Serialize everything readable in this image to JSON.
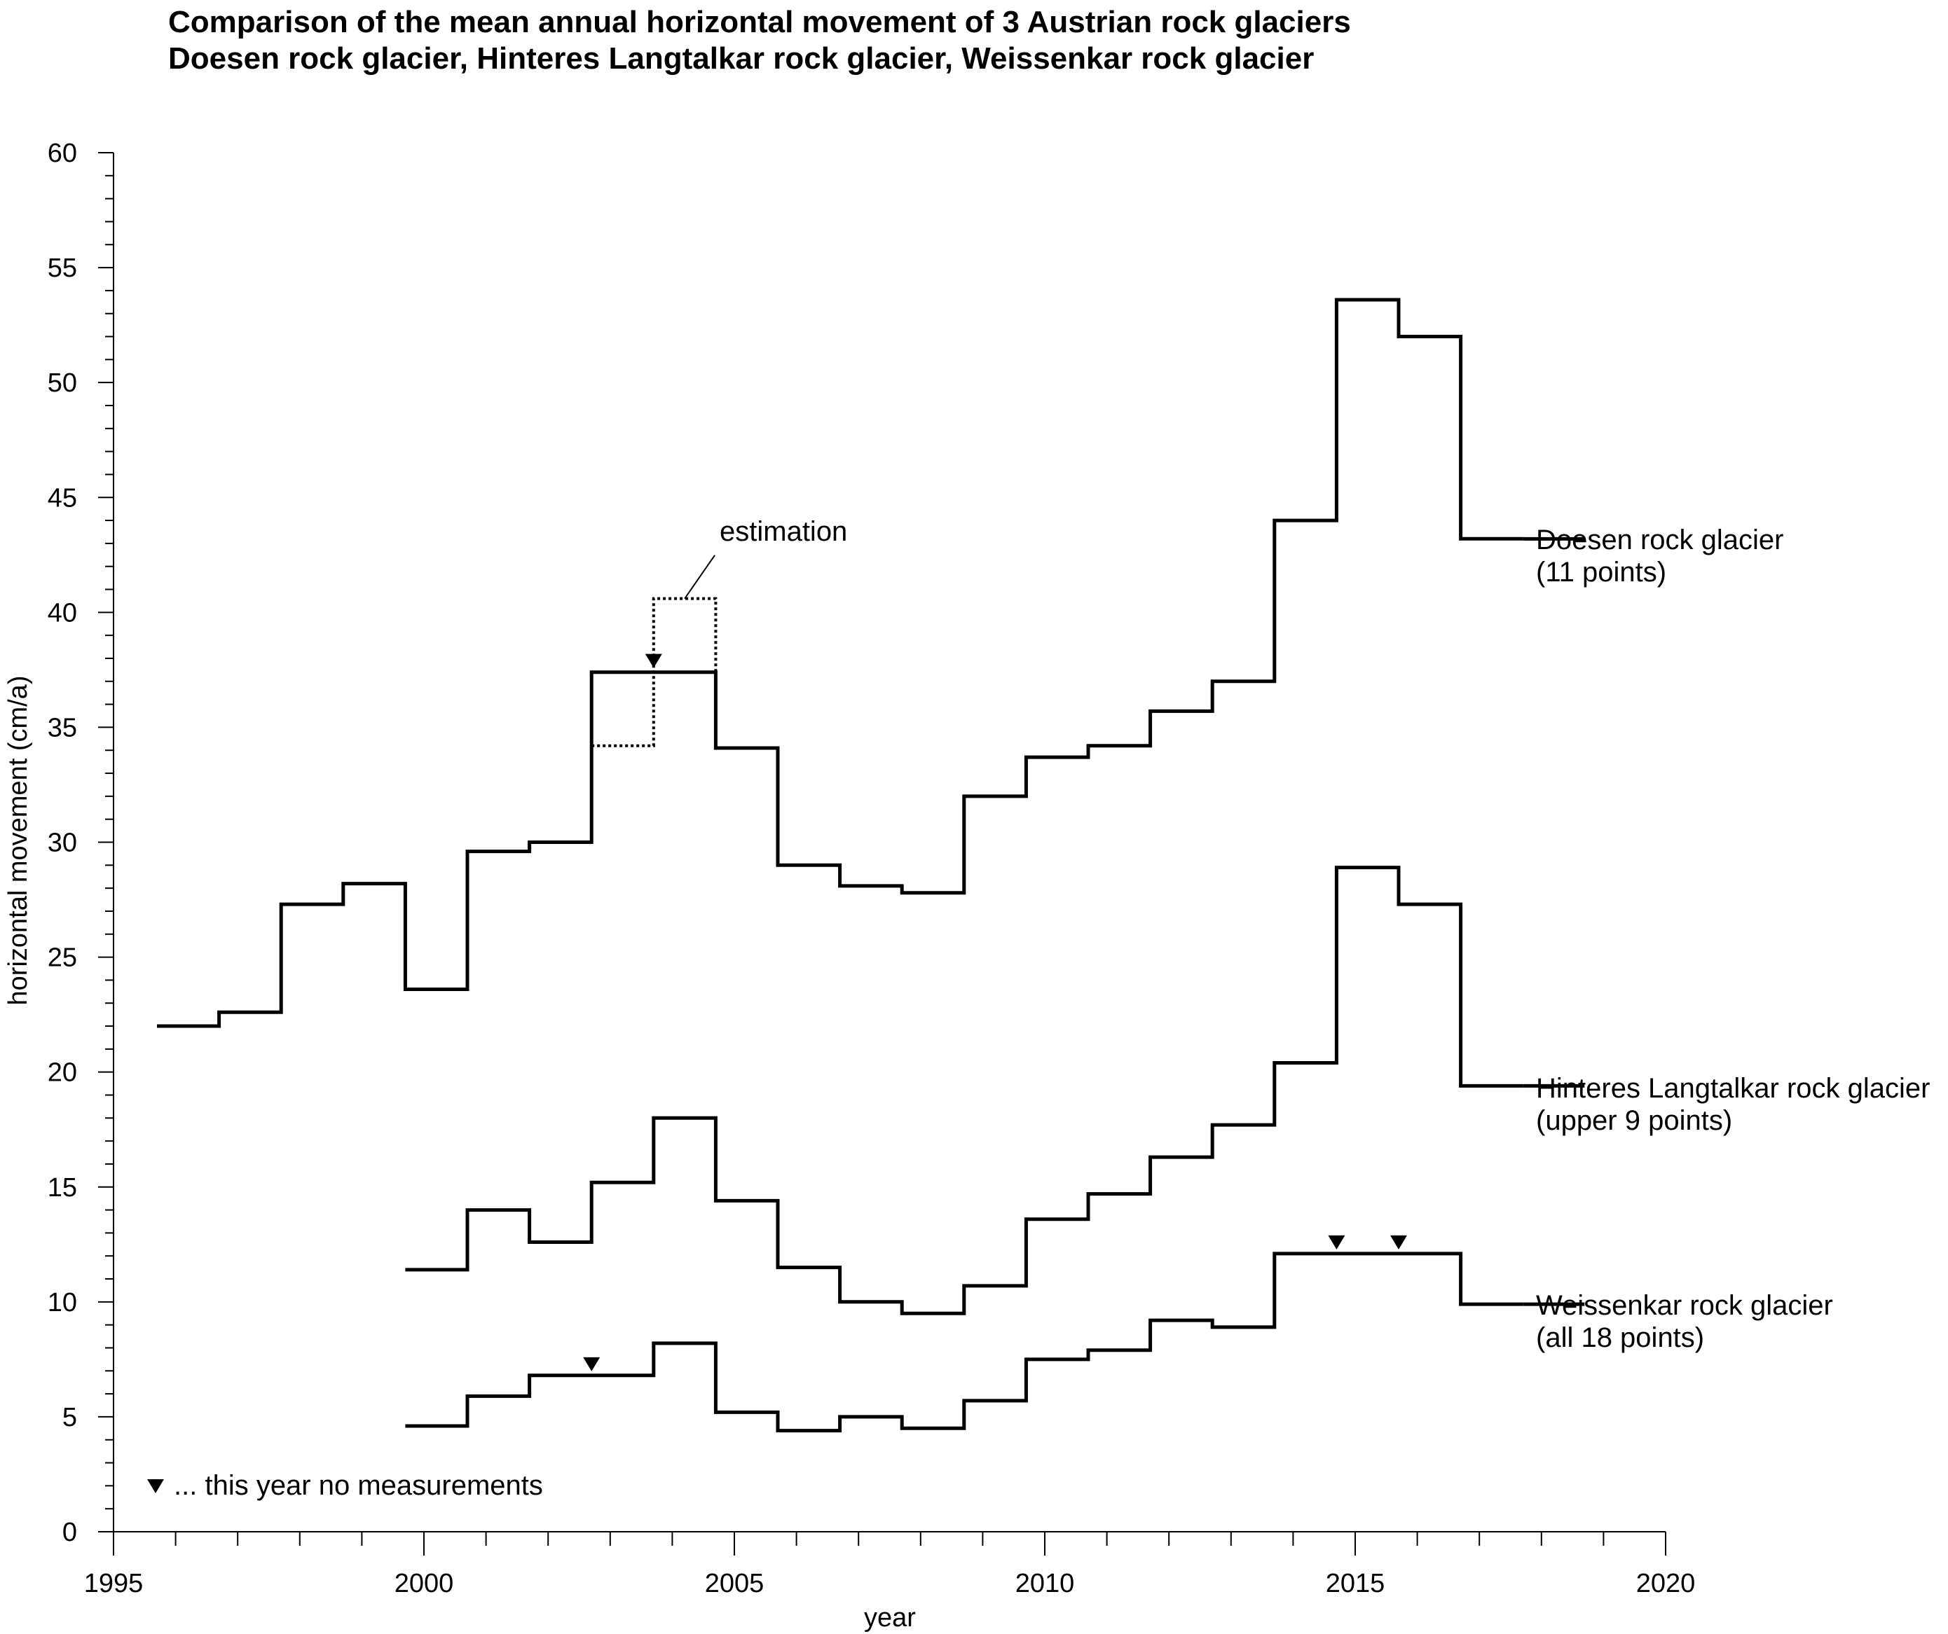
{
  "chart_data": {
    "type": "line",
    "step": true,
    "title": "Comparison of the mean annual horizontal movement of 3 Austrian rock glaciers",
    "subtitle": "Doesen rock glacier, Hinteres Langtalkar rock glacier, Weissenkar rock glacier",
    "xlabel": "year",
    "ylabel": "horizontal movement (cm/a)",
    "xlim": [
      1995,
      2020
    ],
    "ylim": [
      0,
      60
    ],
    "x_ticks": [
      "1995",
      "2000",
      "2005",
      "2010",
      "2015",
      "2020"
    ],
    "y_ticks": [
      "0",
      "5",
      "10",
      "15",
      "20",
      "25",
      "30",
      "35",
      "40",
      "45",
      "50",
      "55",
      "60"
    ],
    "grid": false,
    "series": [
      {
        "label_line1": "Doesen rock glacier",
        "label_line2": "(11 points)",
        "x_start": [
          1995.7,
          1996.7,
          1997.7,
          1998.7,
          1999.7,
          2000.7,
          2001.7,
          2002.7,
          2003.7,
          2004.7,
          2005.7,
          2006.7,
          2007.7,
          2008.7,
          2009.7,
          2010.7,
          2011.7,
          2012.7,
          2013.7,
          2014.7,
          2015.7,
          2016.7
        ],
        "values": [
          22.0,
          22.6,
          27.3,
          28.2,
          23.6,
          29.6,
          30.0,
          37.4,
          37.4,
          34.1,
          29.0,
          28.1,
          27.8,
          32.0,
          33.7,
          34.2,
          35.7,
          37.0,
          44.0,
          53.6,
          52.0,
          43.2
        ],
        "x_end": 2017.7
      },
      {
        "label_line1": "Hinteres Langtalkar rock glacier",
        "label_line2": "(upper 9 points)",
        "x_start": [
          1999.7,
          2000.7,
          2001.7,
          2002.7,
          2003.7,
          2004.7,
          2005.7,
          2006.7,
          2007.7,
          2008.7,
          2009.7,
          2010.7,
          2011.7,
          2012.7,
          2013.7,
          2014.7,
          2015.7,
          2016.7
        ],
        "values": [
          11.4,
          14.0,
          12.6,
          15.2,
          18.0,
          14.4,
          11.5,
          10.0,
          9.5,
          10.7,
          13.6,
          14.7,
          16.3,
          17.7,
          20.4,
          28.9,
          27.3,
          19.4
        ],
        "x_end": 2017.7
      },
      {
        "label_line1": "Weissenkar rock glacier",
        "label_line2": "(all 18 points)",
        "x_start": [
          1999.7,
          2000.7,
          2001.7,
          2002.7,
          2003.7,
          2004.7,
          2005.7,
          2006.7,
          2007.7,
          2008.7,
          2009.7,
          2010.7,
          2011.7,
          2012.7,
          2013.7,
          2014.7,
          2015.7,
          2016.7
        ],
        "values": [
          4.6,
          5.9,
          6.8,
          6.8,
          8.2,
          5.2,
          4.4,
          5.0,
          4.5,
          5.7,
          7.5,
          7.9,
          9.2,
          8.9,
          12.1,
          12.1,
          12.1,
          9.9
        ],
        "x_end": 2017.7
      }
    ],
    "estimation": {
      "label": "estimation",
      "x_start": [
        2002.7,
        2003.7
      ],
      "values": [
        34.2,
        40.6
      ],
      "x_end": 2004.7
    },
    "no_measurement_markers": [
      {
        "x": 2003.7,
        "y": 37.4
      },
      {
        "x": 2002.7,
        "y": 6.8
      },
      {
        "x": 2014.7,
        "y": 12.1
      },
      {
        "x": 2015.7,
        "y": 12.1
      }
    ],
    "legend_note": "... this year no measurements",
    "color": "#000000"
  }
}
